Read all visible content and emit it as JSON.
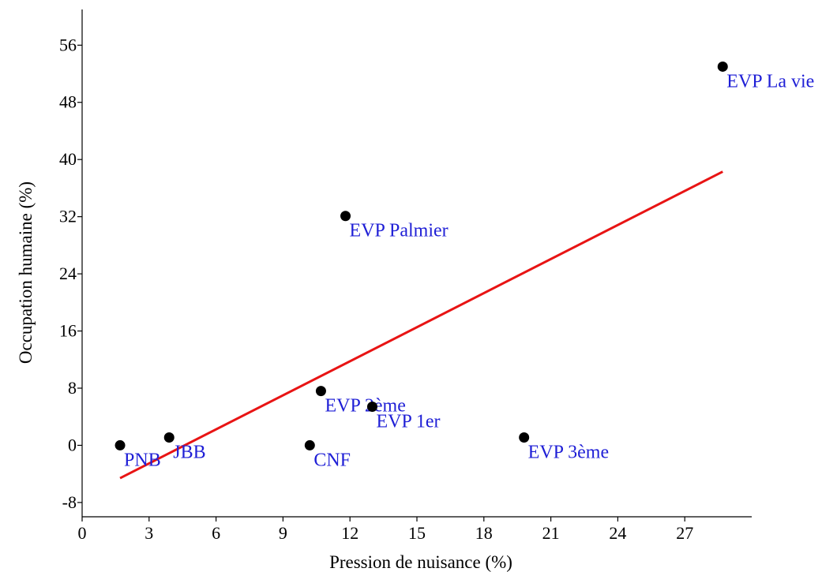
{
  "chart_data": {
    "type": "scatter",
    "title": "",
    "xlabel": "Pression de nuisance (%)",
    "ylabel": "Occupation humaine (%)",
    "xlim": [
      0,
      30
    ],
    "ylim": [
      -10,
      61
    ],
    "x_ticks": [
      0,
      3,
      6,
      9,
      12,
      15,
      18,
      21,
      24,
      27
    ],
    "y_ticks": [
      -8,
      0,
      8,
      16,
      24,
      32,
      40,
      48,
      56
    ],
    "grid": false,
    "legend": "none",
    "colors": {
      "points": "#000000",
      "labels": "#1f1fd6",
      "trendline": "#e81414"
    },
    "points": [
      {
        "label": "PNB",
        "x": 1.7,
        "y": 0.0,
        "label_pos": "below-right"
      },
      {
        "label": "JBB",
        "x": 3.9,
        "y": 1.1,
        "label_pos": "below-right"
      },
      {
        "label": "CNF",
        "x": 10.2,
        "y": 0.0,
        "label_pos": "below-right"
      },
      {
        "label": "EVP 2ème",
        "x": 10.7,
        "y": 7.6,
        "label_pos": "below-right"
      },
      {
        "label": "EVP 1er",
        "x": 13.0,
        "y": 5.4,
        "label_pos": "below-right"
      },
      {
        "label": "EVP Palmier",
        "x": 11.8,
        "y": 32.1,
        "label_pos": "below-right"
      },
      {
        "label": "EVP 3ème",
        "x": 19.8,
        "y": 1.1,
        "label_pos": "below-right"
      },
      {
        "label": "EVP La vie",
        "x": 28.7,
        "y": 53.0,
        "label_pos": "below-right"
      }
    ],
    "trendline": {
      "type": "linear",
      "x": [
        1.7,
        28.7
      ],
      "y": [
        -4.6,
        38.3
      ]
    }
  }
}
